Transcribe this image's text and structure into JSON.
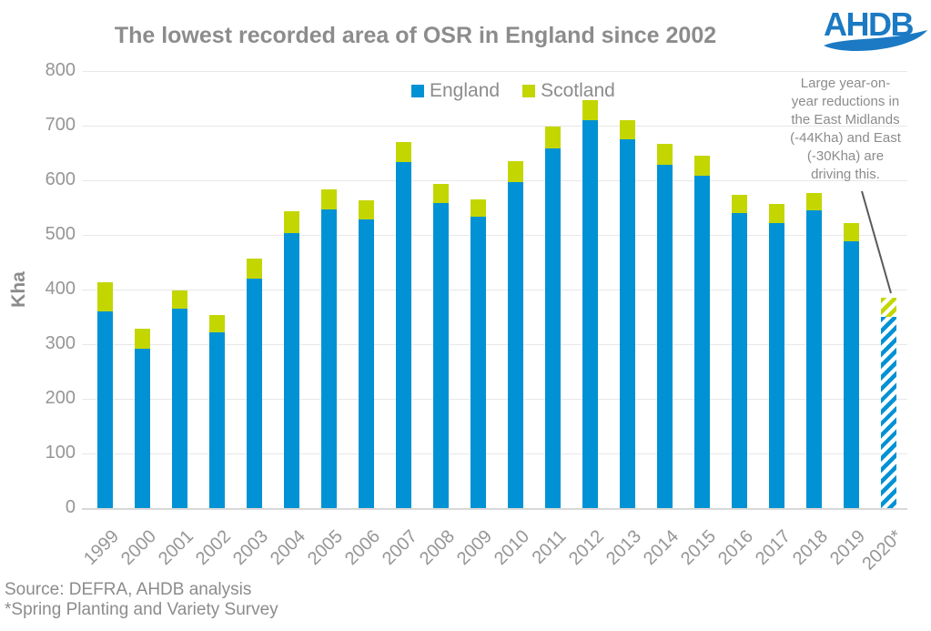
{
  "title": "The lowest recorded area of OSR in England since 2002",
  "logo_text": "AHDB",
  "annotation": "Large year-on-\nyear reductions in\nthe East Midlands\n(-44Kha) and East\n(-30Kha) are\ndriving this.",
  "source": {
    "line1": "Source: DEFRA, AHDB analysis",
    "line2": "*Spring Planting and Variety Survey"
  },
  "colors": {
    "england": "#0092d4",
    "scotland": "#c3d600",
    "logo_blue": "#1b7ac3",
    "text_gray": "#8c8c8c",
    "tick_gray": "#969696",
    "gridline": "#e8e8e8",
    "callout_line": "#595959"
  },
  "chart_data": {
    "type": "bar",
    "stacked": true,
    "title": "The lowest recorded area of OSR in England since 2002",
    "xlabel": "",
    "ylabel": "Kha",
    "ylim": [
      0,
      800
    ],
    "ytick_step": 100,
    "grid": true,
    "legend_position": "top-center",
    "categories": [
      "1999",
      "2000",
      "2001",
      "2002",
      "2003",
      "2004",
      "2005",
      "2006",
      "2007",
      "2008",
      "2009",
      "2010",
      "2011",
      "2012",
      "2013",
      "2014",
      "2015",
      "2016",
      "2017",
      "2018",
      "2019",
      "2020*"
    ],
    "series": [
      {
        "name": "England",
        "color": "#0092d4",
        "values": [
          360,
          291,
          365,
          321,
          420,
          503,
          547,
          528,
          634,
          559,
          534,
          597,
          658,
          710,
          675,
          629,
          608,
          540,
          521,
          545,
          489,
          350
        ]
      },
      {
        "name": "Scotland",
        "color": "#c3d600",
        "values": [
          53,
          38,
          34,
          32,
          36,
          41,
          36,
          35,
          36,
          34,
          31,
          38,
          40,
          37,
          35,
          38,
          37,
          33,
          35,
          32,
          32,
          35
        ]
      }
    ],
    "hatched_categories": [
      "2020*"
    ]
  }
}
